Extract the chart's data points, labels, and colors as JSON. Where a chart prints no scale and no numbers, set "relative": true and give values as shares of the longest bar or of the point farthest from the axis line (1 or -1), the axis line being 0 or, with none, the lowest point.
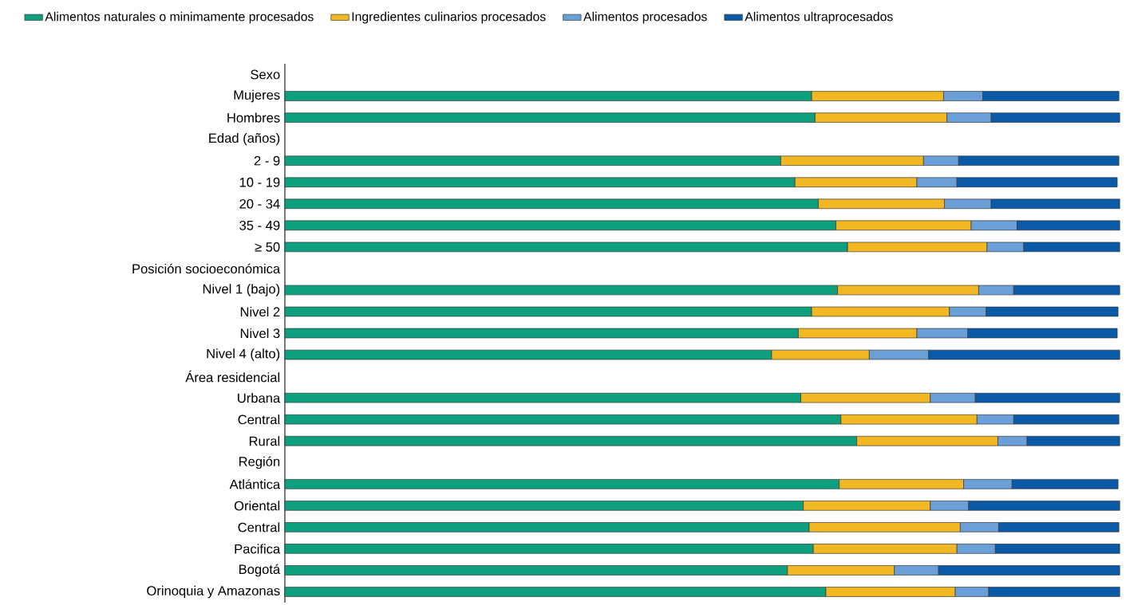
{
  "chart_data": {
    "type": "bar",
    "orientation": "horizontal",
    "stacked": true,
    "relative": true,
    "legend": "top",
    "annotations": [
      "Sexo",
      "Edad (años)",
      "Posición socioeconómica",
      "Área residencial",
      "Región"
    ],
    "categories": [
      "Mujeres",
      "Hombres",
      "2 - 9",
      "10 - 19",
      "20 - 34",
      "35 - 49",
      "≥ 50",
      "Nivel 1 (bajo)",
      "Nivel 2",
      "Nivel 3",
      "Nivel 4 (alto)",
      "Urbana",
      "Central",
      "Rural",
      "Atlántica",
      "Oriental",
      "Central",
      "Pacifica",
      "Bogotá",
      "Orinoquia y Amazonas"
    ],
    "series": [
      {
        "name": "Alimentos naturales o minimamente procesados",
        "color": "#0e9f7e",
        "values": [
          0.631,
          0.635,
          0.594,
          0.611,
          0.639,
          0.66,
          0.674,
          0.662,
          0.631,
          0.615,
          0.583,
          0.618,
          0.666,
          0.685,
          0.664,
          0.621,
          0.628,
          0.633,
          0.602,
          0.648
        ]
      },
      {
        "name": "Ingredientes culinarios procesados",
        "color": "#f2b824",
        "values": [
          0.158,
          0.158,
          0.171,
          0.146,
          0.151,
          0.162,
          0.167,
          0.169,
          0.165,
          0.142,
          0.117,
          0.155,
          0.163,
          0.169,
          0.149,
          0.152,
          0.181,
          0.172,
          0.128,
          0.155
        ]
      },
      {
        "name": "Alimentos procesados",
        "color": "#6a9fd8",
        "values": [
          0.047,
          0.053,
          0.042,
          0.048,
          0.056,
          0.055,
          0.044,
          0.042,
          0.044,
          0.061,
          0.071,
          0.054,
          0.044,
          0.035,
          0.058,
          0.046,
          0.046,
          0.046,
          0.053,
          0.04
        ]
      },
      {
        "name": "Alimentos ultraprocesados",
        "color": "#0a5aa8",
        "values": [
          0.163,
          0.154,
          0.192,
          0.192,
          0.154,
          0.123,
          0.115,
          0.127,
          0.158,
          0.179,
          0.229,
          0.173,
          0.126,
          0.111,
          0.127,
          0.181,
          0.144,
          0.149,
          0.217,
          0.157
        ]
      }
    ]
  }
}
